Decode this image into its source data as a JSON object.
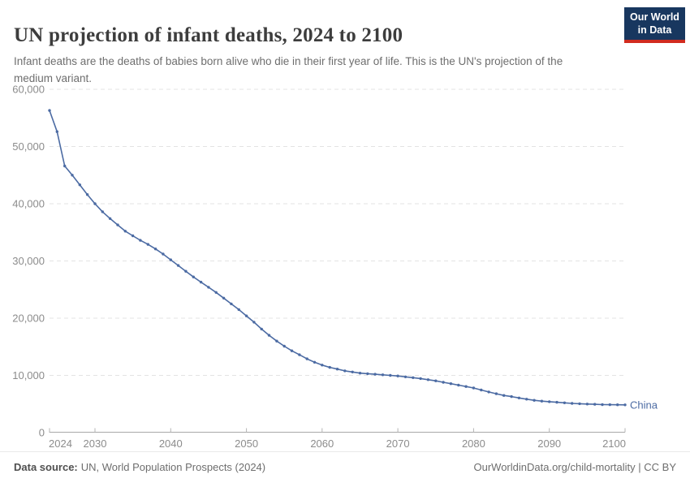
{
  "header": {
    "title": "UN projection of infant deaths, 2024 to 2100",
    "subtitle": "Infant deaths are the deaths of babies born alive who die in their first year of life. This is the UN's projection of the medium variant.",
    "logo": {
      "line1": "Our World",
      "line2": "in Data",
      "bg_color": "#18375f",
      "strip_color": "#d12b1f"
    }
  },
  "chart_data": {
    "type": "line",
    "title": "UN projection of infant deaths, 2024 to 2100",
    "xlabel": "",
    "ylabel": "",
    "xlim": [
      2024,
      2100
    ],
    "ylim": [
      0,
      60000
    ],
    "xticks": [
      2024,
      2030,
      2040,
      2050,
      2060,
      2070,
      2080,
      2090,
      2100
    ],
    "yticks": [
      0,
      10000,
      20000,
      30000,
      40000,
      50000,
      60000
    ],
    "grid": "horizontal-dashed",
    "legend_position": "end-of-line-label",
    "entity_label": "China",
    "line_color": "#4c6ba3",
    "years": [
      2024,
      2025,
      2026,
      2027,
      2028,
      2029,
      2030,
      2031,
      2032,
      2033,
      2034,
      2035,
      2036,
      2037,
      2038,
      2039,
      2040,
      2041,
      2042,
      2043,
      2044,
      2045,
      2046,
      2047,
      2048,
      2049,
      2050,
      2051,
      2052,
      2053,
      2054,
      2055,
      2056,
      2057,
      2058,
      2059,
      2060,
      2061,
      2062,
      2063,
      2064,
      2065,
      2066,
      2067,
      2068,
      2069,
      2070,
      2071,
      2072,
      2073,
      2074,
      2075,
      2076,
      2077,
      2078,
      2079,
      2080,
      2081,
      2082,
      2083,
      2084,
      2085,
      2086,
      2087,
      2088,
      2089,
      2090,
      2091,
      2092,
      2093,
      2094,
      2095,
      2096,
      2097,
      2098,
      2099,
      2100
    ],
    "series": [
      {
        "name": "China",
        "values": [
          56300,
          52600,
          46600,
          45000,
          43300,
          41600,
          40000,
          38600,
          37400,
          36300,
          35200,
          34400,
          33600,
          32900,
          32100,
          31200,
          30200,
          29200,
          28200,
          27200,
          26300,
          25400,
          24500,
          23500,
          22500,
          21500,
          20400,
          19300,
          18100,
          17000,
          16000,
          15100,
          14300,
          13600,
          12900,
          12300,
          11800,
          11400,
          11100,
          10800,
          10600,
          10400,
          10300,
          10200,
          10100,
          10000,
          9900,
          9750,
          9600,
          9450,
          9250,
          9050,
          8800,
          8550,
          8300,
          8050,
          7800,
          7450,
          7100,
          6800,
          6500,
          6300,
          6050,
          5850,
          5650,
          5500,
          5400,
          5300,
          5200,
          5100,
          5050,
          5000,
          4950,
          4900,
          4880,
          4860,
          4850
        ]
      }
    ]
  },
  "footer": {
    "source_label": "Data source:",
    "source_text": "UN, World Population Prospects (2024)",
    "credit": "OurWorldinData.org/child-mortality | CC BY"
  }
}
